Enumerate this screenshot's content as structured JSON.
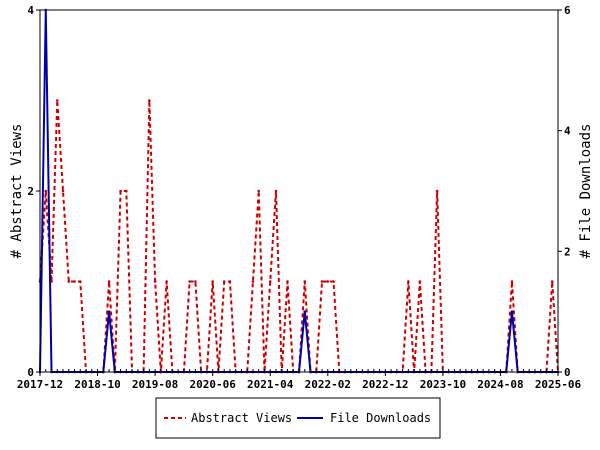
{
  "chart_data": {
    "type": "line",
    "title": "",
    "x_ticks": [
      "2017-12",
      "2018-10",
      "2019-08",
      "2020-06",
      "2021-04",
      "2022-02",
      "2022-12",
      "2023-10",
      "2024-08",
      "2025-06"
    ],
    "y_left": {
      "label": "# Abstract Views",
      "ylim": [
        0,
        4
      ],
      "ticks": [
        "0",
        "2",
        "4"
      ]
    },
    "y_right": {
      "label": "# File Downloads",
      "ylim": [
        0,
        6
      ],
      "ticks": [
        "0",
        "2",
        "4",
        "6"
      ]
    },
    "legend": {
      "placement": "bottom-center"
    },
    "series": [
      {
        "name": "Abstract Views",
        "axis": "left",
        "color": "#cc0000",
        "style": "dashed",
        "points": [
          [
            "2017-12",
            1
          ],
          [
            "2018-01",
            2
          ],
          [
            "2018-02",
            1
          ],
          [
            "2018-03",
            3
          ],
          [
            "2018-04",
            2
          ],
          [
            "2018-05",
            1
          ],
          [
            "2018-06",
            1
          ],
          [
            "2018-07",
            1
          ],
          [
            "2018-08",
            0
          ],
          [
            "2018-09",
            0
          ],
          [
            "2018-10",
            0
          ],
          [
            "2018-11",
            0
          ],
          [
            "2018-12",
            1
          ],
          [
            "2019-01",
            0
          ],
          [
            "2019-02",
            2
          ],
          [
            "2019-03",
            2
          ],
          [
            "2019-04",
            0
          ],
          [
            "2019-05",
            0
          ],
          [
            "2019-06",
            0
          ],
          [
            "2019-07",
            3
          ],
          [
            "2019-08",
            1
          ],
          [
            "2019-09",
            0
          ],
          [
            "2019-10",
            1
          ],
          [
            "2019-11",
            0
          ],
          [
            "2019-12",
            0
          ],
          [
            "2020-01",
            0
          ],
          [
            "2020-02",
            1
          ],
          [
            "2020-03",
            1
          ],
          [
            "2020-04",
            0
          ],
          [
            "2020-05",
            0
          ],
          [
            "2020-06",
            1
          ],
          [
            "2020-07",
            0
          ],
          [
            "2020-08",
            1
          ],
          [
            "2020-09",
            1
          ],
          [
            "2020-10",
            0
          ],
          [
            "2020-11",
            0
          ],
          [
            "2020-12",
            0
          ],
          [
            "2021-01",
            1
          ],
          [
            "2021-02",
            2
          ],
          [
            "2021-03",
            0
          ],
          [
            "2021-04",
            1
          ],
          [
            "2021-05",
            2
          ],
          [
            "2021-06",
            0
          ],
          [
            "2021-07",
            1
          ],
          [
            "2021-08",
            0
          ],
          [
            "2021-09",
            0
          ],
          [
            "2021-10",
            1
          ],
          [
            "2021-11",
            0
          ],
          [
            "2021-12",
            0
          ],
          [
            "2022-01",
            1
          ],
          [
            "2022-02",
            1
          ],
          [
            "2022-03",
            1
          ],
          [
            "2022-04",
            0
          ],
          [
            "2022-05",
            0
          ],
          [
            "2022-06",
            0
          ],
          [
            "2022-07",
            0
          ],
          [
            "2022-08",
            0
          ],
          [
            "2022-09",
            0
          ],
          [
            "2022-10",
            0
          ],
          [
            "2022-11",
            0
          ],
          [
            "2022-12",
            0
          ],
          [
            "2023-01",
            0
          ],
          [
            "2023-02",
            0
          ],
          [
            "2023-03",
            0
          ],
          [
            "2023-04",
            1
          ],
          [
            "2023-05",
            0
          ],
          [
            "2023-06",
            1
          ],
          [
            "2023-07",
            0
          ],
          [
            "2023-08",
            0
          ],
          [
            "2023-09",
            2
          ],
          [
            "2023-10",
            0
          ],
          [
            "2023-11",
            0
          ],
          [
            "2023-12",
            0
          ],
          [
            "2024-01",
            0
          ],
          [
            "2024-02",
            0
          ],
          [
            "2024-03",
            0
          ],
          [
            "2024-04",
            0
          ],
          [
            "2024-05",
            0
          ],
          [
            "2024-06",
            0
          ],
          [
            "2024-07",
            0
          ],
          [
            "2024-08",
            0
          ],
          [
            "2024-09",
            0
          ],
          [
            "2024-10",
            1
          ],
          [
            "2024-11",
            0
          ],
          [
            "2024-12",
            0
          ],
          [
            "2025-01",
            0
          ],
          [
            "2025-02",
            0
          ],
          [
            "2025-03",
            0
          ],
          [
            "2025-04",
            0
          ],
          [
            "2025-05",
            1
          ],
          [
            "2025-06",
            0
          ]
        ]
      },
      {
        "name": "File Downloads",
        "axis": "right",
        "color": "#0000aa",
        "style": "solid",
        "points": [
          [
            "2017-12",
            0
          ],
          [
            "2018-01",
            6
          ],
          [
            "2018-02",
            0
          ],
          [
            "2018-03",
            0
          ],
          [
            "2018-04",
            0
          ],
          [
            "2018-05",
            0
          ],
          [
            "2018-06",
            0
          ],
          [
            "2018-07",
            0
          ],
          [
            "2018-08",
            0
          ],
          [
            "2018-09",
            0
          ],
          [
            "2018-10",
            0
          ],
          [
            "2018-11",
            0
          ],
          [
            "2018-12",
            1
          ],
          [
            "2019-01",
            0
          ],
          [
            "2019-02",
            0
          ],
          [
            "2019-03",
            0
          ],
          [
            "2019-04",
            0
          ],
          [
            "2019-05",
            0
          ],
          [
            "2019-06",
            0
          ],
          [
            "2019-07",
            0
          ],
          [
            "2019-08",
            0
          ],
          [
            "2019-09",
            0
          ],
          [
            "2019-10",
            0
          ],
          [
            "2019-11",
            0
          ],
          [
            "2019-12",
            0
          ],
          [
            "2020-01",
            0
          ],
          [
            "2020-02",
            0
          ],
          [
            "2020-03",
            0
          ],
          [
            "2020-04",
            0
          ],
          [
            "2020-05",
            0
          ],
          [
            "2020-06",
            0
          ],
          [
            "2020-07",
            0
          ],
          [
            "2020-08",
            0
          ],
          [
            "2020-09",
            0
          ],
          [
            "2020-10",
            0
          ],
          [
            "2020-11",
            0
          ],
          [
            "2020-12",
            0
          ],
          [
            "2021-01",
            0
          ],
          [
            "2021-02",
            0
          ],
          [
            "2021-03",
            0
          ],
          [
            "2021-04",
            0
          ],
          [
            "2021-05",
            0
          ],
          [
            "2021-06",
            0
          ],
          [
            "2021-07",
            0
          ],
          [
            "2021-08",
            0
          ],
          [
            "2021-09",
            0
          ],
          [
            "2021-10",
            1
          ],
          [
            "2021-11",
            0
          ],
          [
            "2021-12",
            0
          ],
          [
            "2022-01",
            0
          ],
          [
            "2022-02",
            0
          ],
          [
            "2022-03",
            0
          ],
          [
            "2022-04",
            0
          ],
          [
            "2022-05",
            0
          ],
          [
            "2022-06",
            0
          ],
          [
            "2022-07",
            0
          ],
          [
            "2022-08",
            0
          ],
          [
            "2022-09",
            0
          ],
          [
            "2022-10",
            0
          ],
          [
            "2022-11",
            0
          ],
          [
            "2022-12",
            0
          ],
          [
            "2023-01",
            0
          ],
          [
            "2023-02",
            0
          ],
          [
            "2023-03",
            0
          ],
          [
            "2023-04",
            0
          ],
          [
            "2023-05",
            0
          ],
          [
            "2023-06",
            0
          ],
          [
            "2023-07",
            0
          ],
          [
            "2023-08",
            0
          ],
          [
            "2023-09",
            0
          ],
          [
            "2023-10",
            0
          ],
          [
            "2023-11",
            0
          ],
          [
            "2023-12",
            0
          ],
          [
            "2024-01",
            0
          ],
          [
            "2024-02",
            0
          ],
          [
            "2024-03",
            0
          ],
          [
            "2024-04",
            0
          ],
          [
            "2024-05",
            0
          ],
          [
            "2024-06",
            0
          ],
          [
            "2024-07",
            0
          ],
          [
            "2024-08",
            0
          ],
          [
            "2024-09",
            0
          ],
          [
            "2024-10",
            1
          ],
          [
            "2024-11",
            0
          ],
          [
            "2024-12",
            0
          ],
          [
            "2025-01",
            0
          ],
          [
            "2025-02",
            0
          ],
          [
            "2025-03",
            0
          ],
          [
            "2025-04",
            0
          ],
          [
            "2025-05",
            0
          ],
          [
            "2025-06",
            0
          ]
        ]
      }
    ]
  }
}
